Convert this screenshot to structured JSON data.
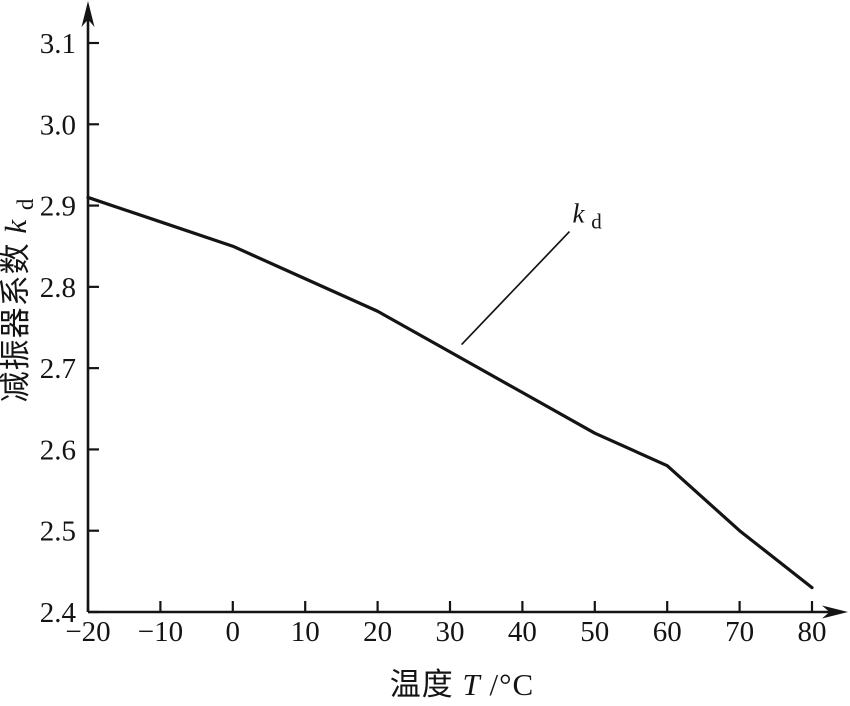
{
  "figure": {
    "background": "#ffffff",
    "ink_color": "#141414"
  },
  "chart_data": {
    "type": "line",
    "title": "",
    "xlabel": "温度T/°C",
    "ylabel": "减振器系数kd",
    "xlim": [
      -20,
      80
    ],
    "ylim": [
      2.4,
      3.1
    ],
    "x_ticks": [
      -20,
      -10,
      0,
      10,
      20,
      30,
      40,
      50,
      60,
      70,
      80
    ],
    "y_ticks": [
      2.4,
      2.5,
      2.6,
      2.7,
      2.8,
      2.9,
      3.0,
      3.1
    ],
    "grid": false,
    "legend_position": "none",
    "x": [
      -20,
      -10,
      0,
      10,
      20,
      30,
      40,
      50,
      60,
      70,
      80
    ],
    "series": [
      {
        "name": "kd",
        "values": [
          2.91,
          2.88,
          2.85,
          2.81,
          2.77,
          2.72,
          2.67,
          2.62,
          2.58,
          2.5,
          2.43
        ]
      }
    ],
    "annotation": {
      "k": "k",
      "sub": "d",
      "leader_from": {
        "x": 31.6,
        "y": 2.729
      },
      "leader_to": {
        "x": 46.5,
        "y": 2.868
      }
    }
  },
  "labels": {
    "y_title_cn": "减振器系数",
    "y_title_var": "k",
    "y_title_sub": "d",
    "x_title_cn": "温度",
    "x_title_var": "T",
    "x_title_unit": "/°C"
  }
}
